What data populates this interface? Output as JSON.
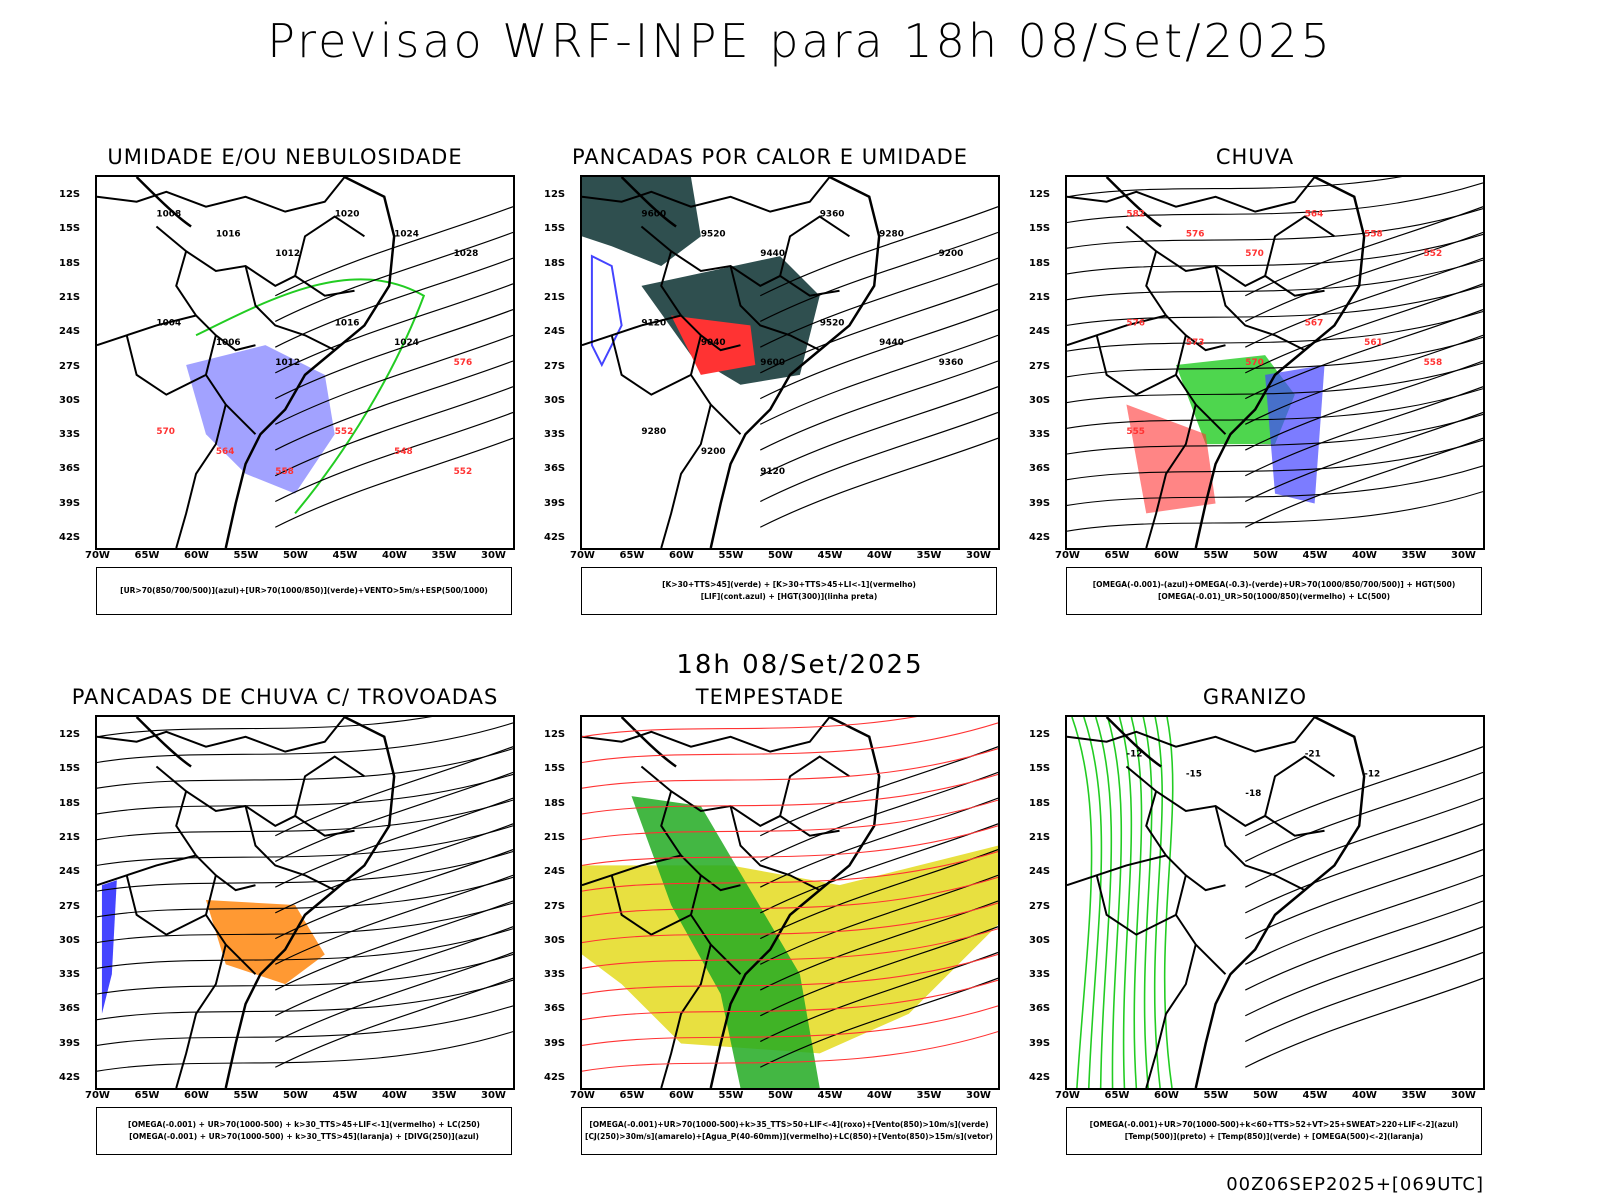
{
  "main_title": "Previsao WRF-INPE  para 18h 08/Set/2025",
  "mid_title": "18h 08/Set/2025",
  "footer": "00Z06SEP2025+[069UTC]",
  "lat_labels": [
    "12S",
    "15S",
    "18S",
    "21S",
    "24S",
    "27S",
    "30S",
    "33S",
    "36S",
    "39S",
    "42S"
  ],
  "lon_labels": [
    "70W",
    "65W",
    "60W",
    "55W",
    "50W",
    "45W",
    "40W",
    "35W",
    "30W"
  ],
  "panels": [
    {
      "title": "UMIDADE E/OU NEBULOSIDADE",
      "legend": [
        "[UR>70(850/700/500)](azul)+[UR>70(1000/850)](verde)+VENTO>5m/s+ESP(500/1000)"
      ]
    },
    {
      "title": "PANCADAS POR CALOR E UMIDADE",
      "legend": [
        "[K>30+TTS>45](verde) + [K>30+TTS>45+LI<-1](vermelho)",
        "[LIF](cont.azul) + [HGT(300)](linha preta)"
      ]
    },
    {
      "title": "CHUVA",
      "legend": [
        "[OMEGA(-0.001)-(azul)+OMEGA(-0.3)-(verde)+UR>70(1000/850/700/500)] + HGT(500)",
        "[OMEGA(-0.01)_UR>50(1000/850)(vermelho) + LC(500)"
      ]
    },
    {
      "title": "PANCADAS DE CHUVA C/ TROVOADAS",
      "legend": [
        "[OMEGA(-0.001) + UR>70(1000-500) + k>30_TTS>45+LIF<-1](vermelho) + LC(250)",
        "[OMEGA(-0.001) + UR>70(1000-500) + k>30_TTS>45](laranja) + [DIVG(250)](azul)"
      ]
    },
    {
      "title": "TEMPESTADE",
      "legend": [
        "[OMEGA(-0.001)+UR>70(1000-500)+k>35_TTS>50+LIF<-4](roxo)+[Vento(850)>10m/s](verde)",
        "[CJ(250)>30m/s](amarelo)+[Agua_P(40-60mm)](vermelho)+LC(850)+[Vento(850)>15m/s](vetor)"
      ]
    },
    {
      "title": "GRANIZO",
      "legend": [
        "[OMEGA(-0.001)+UR>70(1000-500)+k<60+TTS>52+VT>25+SWEAT>220+LIF<-2](azul)",
        "[Temp(500)](preto) + [Temp(850)](verde) + [OMEGA(500)<-2](laranja)"
      ]
    }
  ],
  "contour_labels": {
    "p1": [
      "1008",
      "1016",
      "1012",
      "1020",
      "1024",
      "1028",
      "1004",
      "1006",
      "1012",
      "1016",
      "1024",
      "576",
      "570",
      "564",
      "558",
      "552",
      "548",
      "552"
    ],
    "p2": [
      "9600",
      "9520",
      "9440",
      "9360",
      "9280",
      "9200",
      "9120",
      "9040",
      "9600",
      "9520",
      "9440",
      "9360",
      "9280",
      "9200",
      "9120"
    ],
    "p3": [
      "582",
      "576",
      "570",
      "564",
      "558",
      "552",
      "576",
      "573",
      "570",
      "567",
      "561",
      "558",
      "555"
    ],
    "p6": [
      "-12",
      "-15",
      "-18",
      "-21",
      "-12"
    ]
  },
  "colors": {
    "green": "#22cc22",
    "blue": "#4444ff",
    "red": "#ff3333",
    "orange": "#ff9933",
    "yellow": "#e8e040",
    "dark_teal": "#2f4f4f"
  }
}
